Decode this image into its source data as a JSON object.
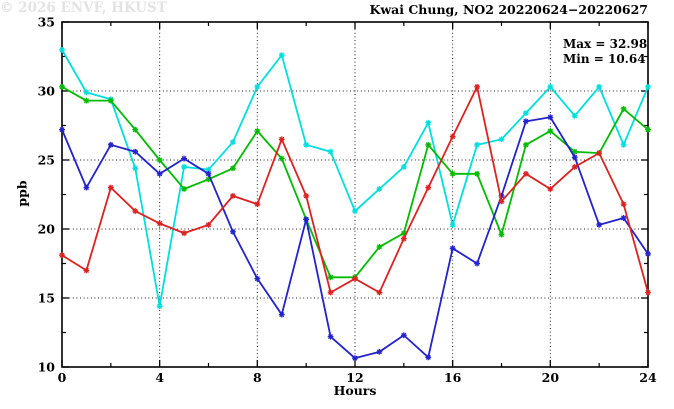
{
  "title": "Kwai Chung, NO2 20220624−20220627",
  "annotation": {
    "max_label": "Max = 32.98",
    "min_label": "Min = 10.64"
  },
  "watermark": "© 2026 ENVF, HKUST",
  "chart_data": {
    "type": "line",
    "title": "Kwai Chung, NO2 20220624−20220627",
    "xlabel": "Hours",
    "ylabel": "ppb",
    "xlim": [
      0,
      24
    ],
    "ylim": [
      10,
      35
    ],
    "x_major_ticks": [
      0,
      4,
      8,
      12,
      16,
      20,
      24
    ],
    "x_minor_step": 2,
    "y_major_ticks": [
      10,
      15,
      20,
      25,
      30,
      35
    ],
    "y_minor_step": 2.5,
    "grid": true,
    "legend": "none",
    "x": [
      0,
      1,
      2,
      3,
      4,
      5,
      6,
      7,
      8,
      9,
      10,
      11,
      12,
      13,
      14,
      15,
      16,
      17,
      18,
      19,
      20,
      21,
      22,
      23,
      24
    ],
    "series": [
      {
        "name": "cyan-series",
        "color": "#00dede",
        "values": [
          32.98,
          29.9,
          29.4,
          24.4,
          14.4,
          24.5,
          24.3,
          26.3,
          30.3,
          32.6,
          26.1,
          25.6,
          21.3,
          22.9,
          24.5,
          27.7,
          20.3,
          26.1,
          26.5,
          28.4,
          30.3,
          28.2,
          30.3,
          26.1,
          30.3
        ]
      },
      {
        "name": "green-series",
        "color": "#00bb00",
        "values": [
          30.3,
          29.3,
          29.3,
          27.2,
          25.0,
          22.9,
          23.6,
          24.4,
          27.1,
          25.1,
          20.7,
          16.5,
          16.5,
          18.7,
          19.7,
          26.1,
          24.0,
          24.0,
          19.6,
          26.1,
          27.1,
          25.6,
          25.5,
          28.7,
          27.2
        ]
      },
      {
        "name": "blue-series",
        "color": "#2323cc",
        "values": [
          27.2,
          23.0,
          26.1,
          25.6,
          24.0,
          25.1,
          24.0,
          19.8,
          16.4,
          13.8,
          20.7,
          12.2,
          10.64,
          11.1,
          12.3,
          10.7,
          18.6,
          17.5,
          22.4,
          27.8,
          28.1,
          25.2,
          20.3,
          20.8,
          18.2
        ]
      },
      {
        "name": "red-series",
        "color": "#dd2222",
        "values": [
          18.1,
          17.0,
          23.0,
          21.3,
          20.4,
          19.7,
          20.3,
          22.4,
          21.8,
          26.5,
          22.4,
          15.4,
          16.4,
          15.4,
          19.3,
          23.0,
          26.7,
          30.3,
          22.0,
          24.0,
          22.9,
          24.5,
          25.5,
          21.8,
          15.4
        ]
      }
    ],
    "annotations": [
      "Max = 32.98",
      "Min = 10.64"
    ],
    "statistics": {
      "max": 32.98,
      "min": 10.64
    }
  }
}
